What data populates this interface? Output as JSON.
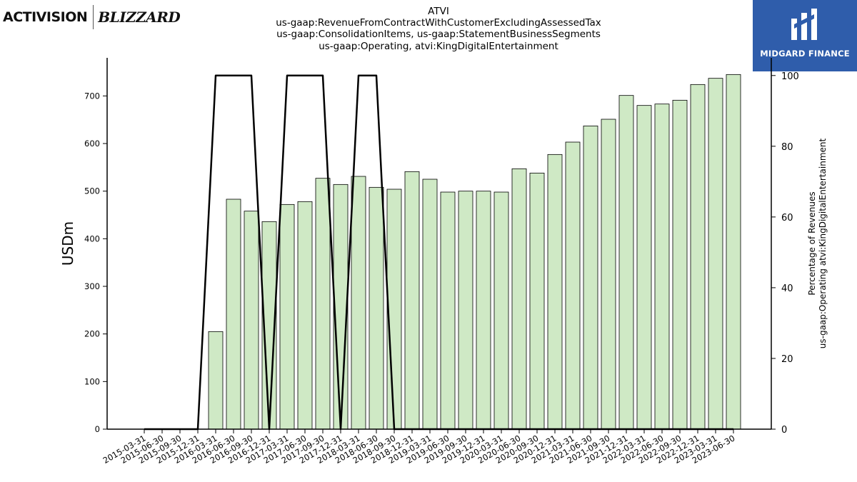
{
  "logos": {
    "left_brand": "ACTIVISION",
    "right_brand": "BLIZZARD",
    "corner_brand": "MIDGARD FINANCE"
  },
  "chart_data": {
    "type": "bar",
    "title_lines": [
      "ATVI",
      "us-gaap:RevenueFromContractWithCustomerExcludingAssessedTax",
      "us-gaap:ConsolidationItems, us-gaap:StatementBusinessSegments",
      "us-gaap:Operating, atvi:KingDigitalEntertainment"
    ],
    "ylabel": "USDm",
    "ylabel_right_lines": [
      "Percentage of Revenues",
      "us-gaap:Operating atvi:KingDigitalEntertainment"
    ],
    "ylim": [
      0,
      780
    ],
    "yticks": [
      0,
      100,
      200,
      300,
      400,
      500,
      600,
      700
    ],
    "ylim_right": [
      0,
      105
    ],
    "yticks_right": [
      0,
      20,
      40,
      60,
      80,
      100
    ],
    "bar_color": "#cfe9c5",
    "line_color": "#000000",
    "grid": false,
    "categories": [
      "2015-03-31",
      "2015-06-30",
      "2015-09-30",
      "2015-12-31",
      "2016-03-31",
      "2016-06-30",
      "2016-09-30",
      "2016-12-31",
      "2017-03-31",
      "2017-06-30",
      "2017-09-30",
      "2017-12-31",
      "2018-03-31",
      "2018-06-30",
      "2018-09-30",
      "2018-12-31",
      "2019-03-31",
      "2019-06-30",
      "2019-09-30",
      "2019-12-31",
      "2020-03-31",
      "2020-06-30",
      "2020-09-30",
      "2020-12-31",
      "2021-03-31",
      "2021-06-30",
      "2021-09-30",
      "2021-12-31",
      "2022-03-31",
      "2022-06-30",
      "2022-09-30",
      "2022-12-31",
      "2023-03-31",
      "2023-06-30"
    ],
    "values": [
      0,
      0,
      0,
      0,
      205,
      483,
      458,
      436,
      472,
      478,
      527,
      514,
      531,
      508,
      504,
      541,
      525,
      498,
      500,
      500,
      498,
      547,
      538,
      577,
      603,
      637,
      651,
      701,
      680,
      683,
      691,
      724,
      737,
      745
    ],
    "line_values": [
      0,
      0,
      0,
      0,
      100,
      100,
      100,
      0,
      100,
      100,
      100,
      0,
      100,
      100,
      0,
      0,
      0,
      0,
      0,
      0,
      0,
      0,
      0,
      0,
      0,
      0,
      0,
      0,
      0,
      0,
      0,
      0,
      0,
      0
    ]
  }
}
